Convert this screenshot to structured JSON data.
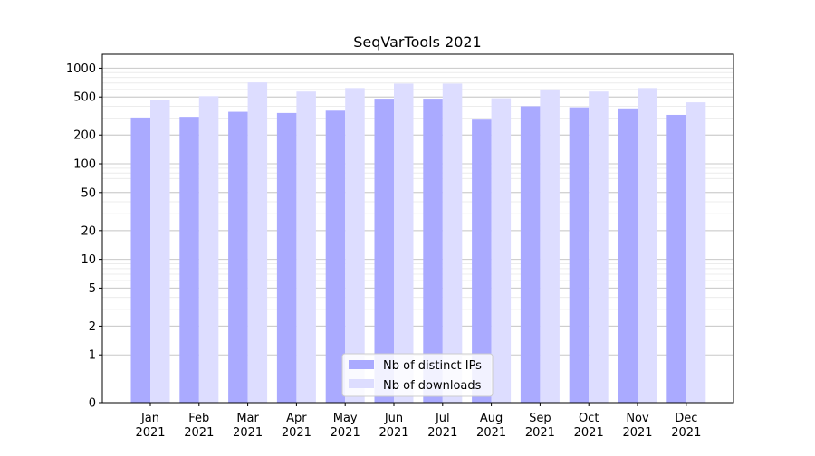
{
  "chart_data": {
    "type": "bar",
    "title": "SeqVarTools 2021",
    "xlabel": "",
    "ylabel": "",
    "yscale": "symlog",
    "ylim": [
      0,
      1400
    ],
    "y_ticks": [
      0,
      1,
      2,
      5,
      10,
      20,
      50,
      100,
      200,
      500,
      1000
    ],
    "y_tick_labels": [
      "0",
      "1",
      "2",
      "5",
      "10",
      "20",
      "50",
      "100",
      "200",
      "500",
      "1000"
    ],
    "grid": true,
    "legend_position": "bottom-center",
    "categories": [
      [
        "Jan",
        "2021"
      ],
      [
        "Feb",
        "2021"
      ],
      [
        "Mar",
        "2021"
      ],
      [
        "Apr",
        "2021"
      ],
      [
        "May",
        "2021"
      ],
      [
        "Jun",
        "2021"
      ],
      [
        "Jul",
        "2021"
      ],
      [
        "Aug",
        "2021"
      ],
      [
        "Sep",
        "2021"
      ],
      [
        "Oct",
        "2021"
      ],
      [
        "Nov",
        "2021"
      ],
      [
        "Dec",
        "2021"
      ]
    ],
    "series": [
      {
        "name": "Nb of distinct IPs",
        "color": "#aaaaff",
        "values": [
          305,
          310,
          350,
          340,
          360,
          480,
          480,
          290,
          400,
          390,
          380,
          325
        ]
      },
      {
        "name": "Nb of downloads",
        "color": "#ddddff",
        "values": [
          470,
          510,
          710,
          570,
          620,
          690,
          690,
          485,
          600,
          570,
          620,
          440
        ]
      }
    ]
  }
}
